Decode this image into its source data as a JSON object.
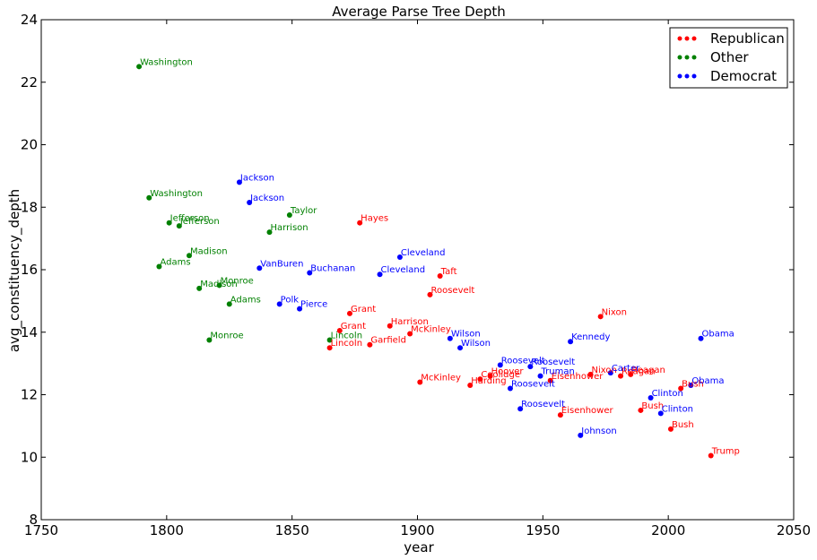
{
  "chart_data": {
    "type": "scatter",
    "title": "Average Parse Tree Depth",
    "xlabel": "year",
    "ylabel": "avg_constituency_depth",
    "xlim": [
      1750,
      2050
    ],
    "ylim": [
      8,
      24
    ],
    "xticks": [
      1750,
      1800,
      1850,
      1900,
      1950,
      2000,
      2050
    ],
    "yticks": [
      8,
      10,
      12,
      14,
      16,
      18,
      20,
      22,
      24
    ],
    "grid": false,
    "legend_position": "top-right",
    "series": [
      {
        "name": "Republican",
        "color": "#ff0000",
        "points": [
          {
            "x": 1877,
            "y": 17.5,
            "label": "Hayes"
          },
          {
            "x": 1909,
            "y": 15.8,
            "label": "Taft"
          },
          {
            "x": 1905,
            "y": 15.2,
            "label": "Roosevelt"
          },
          {
            "x": 1873,
            "y": 14.6,
            "label": "Grant"
          },
          {
            "x": 1869,
            "y": 14.05,
            "label": "Grant"
          },
          {
            "x": 1889,
            "y": 14.2,
            "label": "Harrison"
          },
          {
            "x": 1897,
            "y": 13.95,
            "label": "McKinley"
          },
          {
            "x": 1881,
            "y": 13.6,
            "label": "Garfield"
          },
          {
            "x": 1865,
            "y": 13.5,
            "label": "Lincoln"
          },
          {
            "x": 1973,
            "y": 14.5,
            "label": "Nixon"
          },
          {
            "x": 1901,
            "y": 12.4,
            "label": "McKinley"
          },
          {
            "x": 1925,
            "y": 12.5,
            "label": "Coolidge"
          },
          {
            "x": 1929,
            "y": 12.6,
            "label": "Hoover"
          },
          {
            "x": 1921,
            "y": 12.3,
            "label": "Harding"
          },
          {
            "x": 1953,
            "y": 12.45,
            "label": "Eisenhower"
          },
          {
            "x": 1957,
            "y": 11.35,
            "label": "Eisenhower"
          },
          {
            "x": 1969,
            "y": 12.65,
            "label": "Nixon"
          },
          {
            "x": 1981,
            "y": 12.6,
            "label": "Reagan"
          },
          {
            "x": 1985,
            "y": 12.65,
            "label": "Reagan"
          },
          {
            "x": 1989,
            "y": 11.5,
            "label": "Bush"
          },
          {
            "x": 2001,
            "y": 10.9,
            "label": "Bush"
          },
          {
            "x": 2005,
            "y": 12.2,
            "label": "Bush"
          },
          {
            "x": 2017,
            "y": 10.05,
            "label": "Trump"
          }
        ]
      },
      {
        "name": "Other",
        "color": "#008000",
        "points": [
          {
            "x": 1789,
            "y": 22.5,
            "label": "Washington"
          },
          {
            "x": 1793,
            "y": 18.3,
            "label": "Washington"
          },
          {
            "x": 1801,
            "y": 17.5,
            "label": "Jefferson"
          },
          {
            "x": 1805,
            "y": 17.4,
            "label": "Jefferson"
          },
          {
            "x": 1809,
            "y": 16.45,
            "label": "Madison"
          },
          {
            "x": 1797,
            "y": 16.1,
            "label": "Adams"
          },
          {
            "x": 1813,
            "y": 15.4,
            "label": "Madison"
          },
          {
            "x": 1821,
            "y": 15.5,
            "label": "Monroe"
          },
          {
            "x": 1825,
            "y": 14.9,
            "label": "Adams"
          },
          {
            "x": 1817,
            "y": 13.75,
            "label": "Monroe"
          },
          {
            "x": 1849,
            "y": 17.75,
            "label": "Taylor"
          },
          {
            "x": 1841,
            "y": 17.2,
            "label": "Harrison"
          },
          {
            "x": 1865,
            "y": 13.75,
            "label": "Lincoln"
          }
        ]
      },
      {
        "name": "Democrat",
        "color": "#0000ff",
        "points": [
          {
            "x": 1829,
            "y": 18.8,
            "label": "Jackson"
          },
          {
            "x": 1833,
            "y": 18.15,
            "label": "Jackson"
          },
          {
            "x": 1837,
            "y": 16.05,
            "label": "VanBuren"
          },
          {
            "x": 1857,
            "y": 15.9,
            "label": "Buchanan"
          },
          {
            "x": 1845,
            "y": 14.9,
            "label": "Polk"
          },
          {
            "x": 1853,
            "y": 14.75,
            "label": "Pierce"
          },
          {
            "x": 1893,
            "y": 16.4,
            "label": "Cleveland"
          },
          {
            "x": 1885,
            "y": 15.85,
            "label": "Cleveland"
          },
          {
            "x": 1913,
            "y": 13.8,
            "label": "Wilson"
          },
          {
            "x": 1917,
            "y": 13.5,
            "label": "Wilson"
          },
          {
            "x": 1933,
            "y": 12.95,
            "label": "Roosevelt"
          },
          {
            "x": 1937,
            "y": 12.2,
            "label": "Roosevelt"
          },
          {
            "x": 1941,
            "y": 11.55,
            "label": "Roosevelt"
          },
          {
            "x": 1945,
            "y": 12.9,
            "label": "Roosevelt"
          },
          {
            "x": 1949,
            "y": 12.6,
            "label": "Truman"
          },
          {
            "x": 1961,
            "y": 13.7,
            "label": "Kennedy"
          },
          {
            "x": 1965,
            "y": 10.7,
            "label": "Johnson"
          },
          {
            "x": 1977,
            "y": 12.7,
            "label": "Carter"
          },
          {
            "x": 1993,
            "y": 11.9,
            "label": "Clinton"
          },
          {
            "x": 1997,
            "y": 11.4,
            "label": "Clinton"
          },
          {
            "x": 2009,
            "y": 12.3,
            "label": "Obama"
          },
          {
            "x": 2013,
            "y": 13.8,
            "label": "Obama"
          }
        ]
      }
    ]
  }
}
